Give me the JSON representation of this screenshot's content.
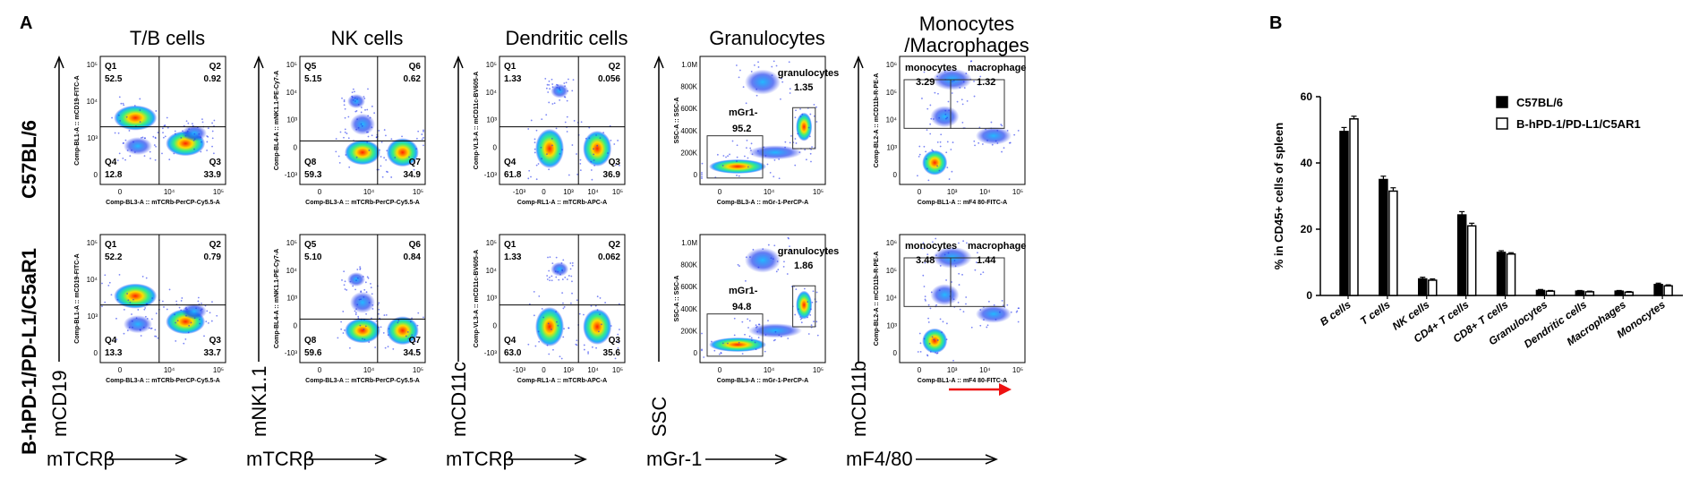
{
  "panel_a_letter": "A",
  "panel_b_letter": "B",
  "row_labels": [
    "C57BL/6",
    "B-hPD-1/PD-L1/C5aR1"
  ],
  "columns": [
    {
      "title": "T/B cells",
      "y_marker": "mCD19",
      "x_marker": "mTCRβ",
      "x_axis_title": "Comp-BL3-A :: mTCRb-PerCP-Cy5.5-A",
      "y_axis_title": "Comp-BL1-A :: mCD19-FITC-A",
      "x_ticks": [
        "0",
        "10⁴",
        "10⁵"
      ],
      "y_ticks": [
        "10⁵",
        "10⁴",
        "10³",
        "0"
      ],
      "rows": [
        {
          "gates": [
            {
              "name": "Q1",
              "value": "52.5"
            },
            {
              "name": "Q2",
              "value": "0.92"
            },
            {
              "name": "Q4",
              "value": "12.8"
            },
            {
              "name": "Q3",
              "value": "33.9"
            }
          ]
        },
        {
          "gates": [
            {
              "name": "Q1",
              "value": "52.2"
            },
            {
              "name": "Q2",
              "value": "0.79"
            },
            {
              "name": "Q4",
              "value": "13.3"
            },
            {
              "name": "Q3",
              "value": "33.7"
            }
          ]
        }
      ]
    },
    {
      "title": "NK cells",
      "y_marker": "mNK1.1",
      "x_marker": "mTCRβ",
      "x_axis_title": "Comp-BL3-A :: mTCRb-PerCP-Cy5.5-A",
      "y_axis_title": "Comp-BL4-A :: mNK1.1-PE-Cy7-A",
      "x_ticks": [
        "0",
        "10⁴",
        "10⁵"
      ],
      "y_ticks": [
        "10⁵",
        "10⁴",
        "10³",
        "0",
        "-10³"
      ],
      "rows": [
        {
          "gates": [
            {
              "name": "Q5",
              "value": "5.15"
            },
            {
              "name": "Q6",
              "value": "0.62"
            },
            {
              "name": "Q8",
              "value": "59.3"
            },
            {
              "name": "Q7",
              "value": "34.9"
            }
          ]
        },
        {
          "gates": [
            {
              "name": "Q5",
              "value": "5.10"
            },
            {
              "name": "Q6",
              "value": "0.84"
            },
            {
              "name": "Q8",
              "value": "59.6"
            },
            {
              "name": "Q7",
              "value": "34.5"
            }
          ]
        }
      ]
    },
    {
      "title": "Dendritic cells",
      "y_marker": "mCD11c",
      "x_marker": "mTCRβ",
      "x_axis_title": "Comp-RL1-A :: mTCRb-APC-A",
      "y_axis_title": "Comp-VL3-A :: mCD11c-BV605-A",
      "x_ticks": [
        "-10³",
        "0",
        "10³",
        "10⁴",
        "10⁵"
      ],
      "y_ticks": [
        "10⁵",
        "10⁴",
        "10³",
        "0",
        "-10³"
      ],
      "rows": [
        {
          "gates": [
            {
              "name": "Q1",
              "value": "1.33"
            },
            {
              "name": "Q2",
              "value": "0.056"
            },
            {
              "name": "Q4",
              "value": "61.8"
            },
            {
              "name": "Q3",
              "value": "36.9"
            }
          ]
        },
        {
          "gates": [
            {
              "name": "Q1",
              "value": "1.33"
            },
            {
              "name": "Q2",
              "value": "0.062"
            },
            {
              "name": "Q4",
              "value": "63.0"
            },
            {
              "name": "Q3",
              "value": "35.6"
            }
          ]
        }
      ]
    },
    {
      "title": "Granulocytes",
      "y_marker": "SSC",
      "x_marker": "mGr-1",
      "x_axis_title": "Comp-BL3-A :: mGr-1-PerCP-A",
      "y_axis_title": "SSC-A :: SSC-A",
      "x_ticks": [
        "0",
        "10⁴",
        "10⁵"
      ],
      "y_ticks": [
        "1.0M",
        "800K",
        "600K",
        "400K",
        "200K",
        "0"
      ],
      "rows": [
        {
          "gates": [
            {
              "name": "granulocytes",
              "value": "1.35"
            },
            {
              "name": "mGr1-",
              "value": "95.2"
            }
          ]
        },
        {
          "gates": [
            {
              "name": "granulocytes",
              "value": "1.86"
            },
            {
              "name": "mGr1-",
              "value": "94.8"
            }
          ]
        }
      ]
    },
    {
      "title": "Monocytes",
      "title2": "/Macrophages",
      "y_marker": "mCD11b",
      "x_marker": "mF4/80",
      "x_axis_title": "Comp-BL1-A :: mF4 80-FITC-A",
      "y_axis_title": "Comp-BL2-A :: mCD11b-R-PE-A",
      "x_ticks": [
        "0",
        "10³",
        "10⁴",
        "10⁵"
      ],
      "y_ticks": [
        "10⁶",
        "10⁵",
        "10⁴",
        "10³",
        "0"
      ],
      "rows": [
        {
          "gates": [
            {
              "name": "monocytes",
              "value": "3.29"
            },
            {
              "name": "macrophage",
              "value": "1.32"
            }
          ]
        },
        {
          "gates": [
            {
              "name": "monocytes",
              "value": "3.48"
            },
            {
              "name": "macrophage",
              "value": "1.44"
            }
          ]
        }
      ]
    }
  ],
  "colors": {
    "series1_fill": "#000000",
    "series2_fill": "#ffffff",
    "density_low": "#2233ee",
    "density_mid": "#33ee88",
    "density_high": "#ff2200",
    "arrow": "#ee1111"
  },
  "chart_data": {
    "type": "bar",
    "ylabel": "% in CD45+ cells of spleen",
    "ylim": [
      0,
      60
    ],
    "yticks": [
      0,
      20,
      40,
      60
    ],
    "categories": [
      "B cells",
      "T cells",
      "NK cells",
      "CD4+ T cells",
      "CD8+ T cells",
      "Granulocytes",
      "Dendritic cells",
      "Macrophages",
      "Monocytes"
    ],
    "series": [
      {
        "name": "C57BL/6",
        "values": [
          49.5,
          35.0,
          5.0,
          24.3,
          13.0,
          1.5,
          1.3,
          1.3,
          3.3
        ],
        "errors": [
          1.2,
          1.0,
          0.5,
          1.0,
          0.5,
          0.3,
          0.2,
          0.2,
          0.4
        ]
      },
      {
        "name": "B-hPD-1/PD-L1/C5AR1",
        "values": [
          53.3,
          31.5,
          4.6,
          21.0,
          12.5,
          1.3,
          1.1,
          1.0,
          2.9
        ],
        "errors": [
          0.8,
          1.0,
          0.4,
          0.8,
          0.4,
          0.2,
          0.2,
          0.2,
          0.3
        ]
      }
    ],
    "legend_position": "top-right",
    "grid": false
  }
}
